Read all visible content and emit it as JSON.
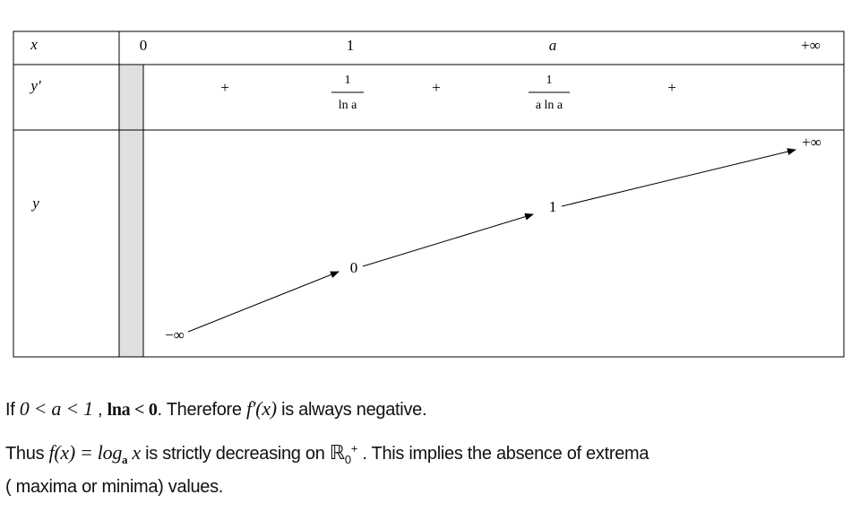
{
  "table": {
    "x_label": "x",
    "x_values": [
      "0",
      "1",
      "a",
      "+∞"
    ],
    "derivative_label": "y'",
    "signs": [
      "+",
      "+",
      "+"
    ],
    "derivative_values": [
      {
        "numerator": "1",
        "denominator": "ln a"
      },
      {
        "numerator": "1",
        "denominator": "a ln a"
      }
    ],
    "function_label": "y",
    "function_values": [
      "−∞",
      "0",
      "1",
      "+∞"
    ]
  },
  "paragraphs": [
    [
      "If ",
      "0 < a < 1",
      " , ",
      "lna < 0",
      ". Therefore ",
      "f′(x)",
      " is always negative."
    ],
    [
      "Thus ",
      "f(x) = log",
      "a",
      " x",
      " is strictly decreasing on ",
      "ℝ",
      "0",
      "+",
      " . This implies the absence of extrema"
    ],
    [
      "( maxima or minima) values."
    ]
  ]
}
